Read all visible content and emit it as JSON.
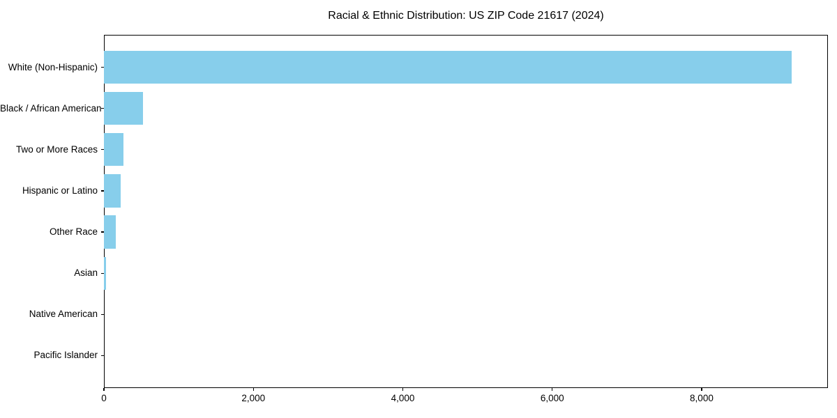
{
  "chart_data": {
    "type": "bar",
    "orientation": "horizontal",
    "title": "Racial & Ethnic Distribution: US ZIP Code 21617 (2024)",
    "xlabel": "",
    "ylabel": "",
    "categories": [
      "White (Non-Hispanic)",
      "Black / African American",
      "Two or More Races",
      "Hispanic or Latino",
      "Other Race",
      "Asian",
      "Native American",
      "Pacific Islander"
    ],
    "values": [
      9200,
      520,
      265,
      225,
      155,
      28,
      0,
      0
    ],
    "xlim": [
      0,
      9690
    ],
    "x_ticks": [
      0,
      2000,
      4000,
      6000,
      8000
    ],
    "x_tick_labels": [
      "0",
      "2,000",
      "4,000",
      "6,000",
      "8,000"
    ],
    "bar_color": "#87CEEB",
    "spine_color": "#000000",
    "grid": false,
    "legend": null
  }
}
